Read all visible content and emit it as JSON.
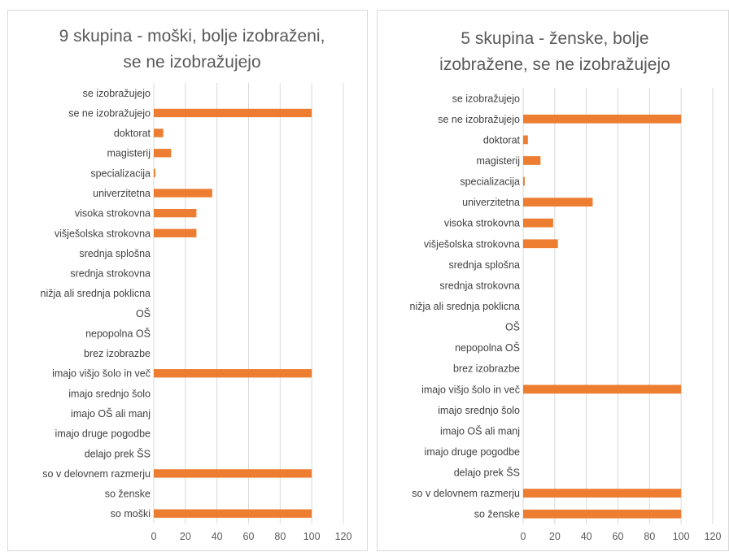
{
  "chart_data": [
    {
      "type": "bar",
      "orientation": "horizontal",
      "title": [
        "9 skupina - moški, bolje izobraženi,",
        "se ne izobražujejo"
      ],
      "categories": [
        "se izobražujejo",
        "se ne izobražujejo",
        "doktorat",
        "magisterij",
        "specializacija",
        "univerzitetna",
        "visoka strokovna",
        "višješolska strokovna",
        "srednja splošna",
        "srednja strokovna",
        "nižja ali srednja poklicna",
        "OŠ",
        "nepopolna OŠ",
        "brez izobrazbe",
        "imajo višjo šolo in več",
        "imajo srednjo šolo",
        "imajo OŠ ali manj",
        "imajo druge pogodbe",
        "delajo prek ŠS",
        "so v delovnem razmerju",
        "so ženske",
        "so moški"
      ],
      "values": [
        0,
        100,
        6,
        11,
        1,
        37,
        27,
        27,
        0,
        0,
        0,
        0,
        0,
        0,
        100,
        0,
        0,
        0,
        0,
        100,
        0,
        100
      ],
      "xlim": [
        0,
        120
      ],
      "xticks": [
        0,
        20,
        40,
        60,
        80,
        100,
        120
      ],
      "bar_color": "#ed7d31",
      "grid": true
    },
    {
      "type": "bar",
      "orientation": "horizontal",
      "title": [
        "5 skupina - ženske, bolje",
        "izobražene, se ne izobražujejo"
      ],
      "categories": [
        "se izobražujejo",
        "se ne izobražujejo",
        "doktorat",
        "magisterij",
        "specializacija",
        "univerzitetna",
        "visoka strokovna",
        "višješolska strokovna",
        "srednja splošna",
        "srednja strokovna",
        "nižja ali srednja poklicna",
        "OŠ",
        "nepopolna OŠ",
        "brez izobrazbe",
        "imajo višjo šolo in več",
        "imajo srednjo šolo",
        "imajo OŠ ali manj",
        "imajo druge pogodbe",
        "delajo prek ŠS",
        "so v delovnem razmerju",
        "so ženske"
      ],
      "values": [
        0,
        100,
        3,
        11,
        1,
        44,
        19,
        22,
        0,
        0,
        0,
        0,
        0,
        0,
        100,
        0,
        0,
        0,
        0,
        100,
        100
      ],
      "xlim": [
        0,
        120
      ],
      "xticks": [
        0,
        20,
        40,
        60,
        80,
        100,
        120
      ],
      "bar_color": "#ed7d31",
      "grid": true
    }
  ]
}
